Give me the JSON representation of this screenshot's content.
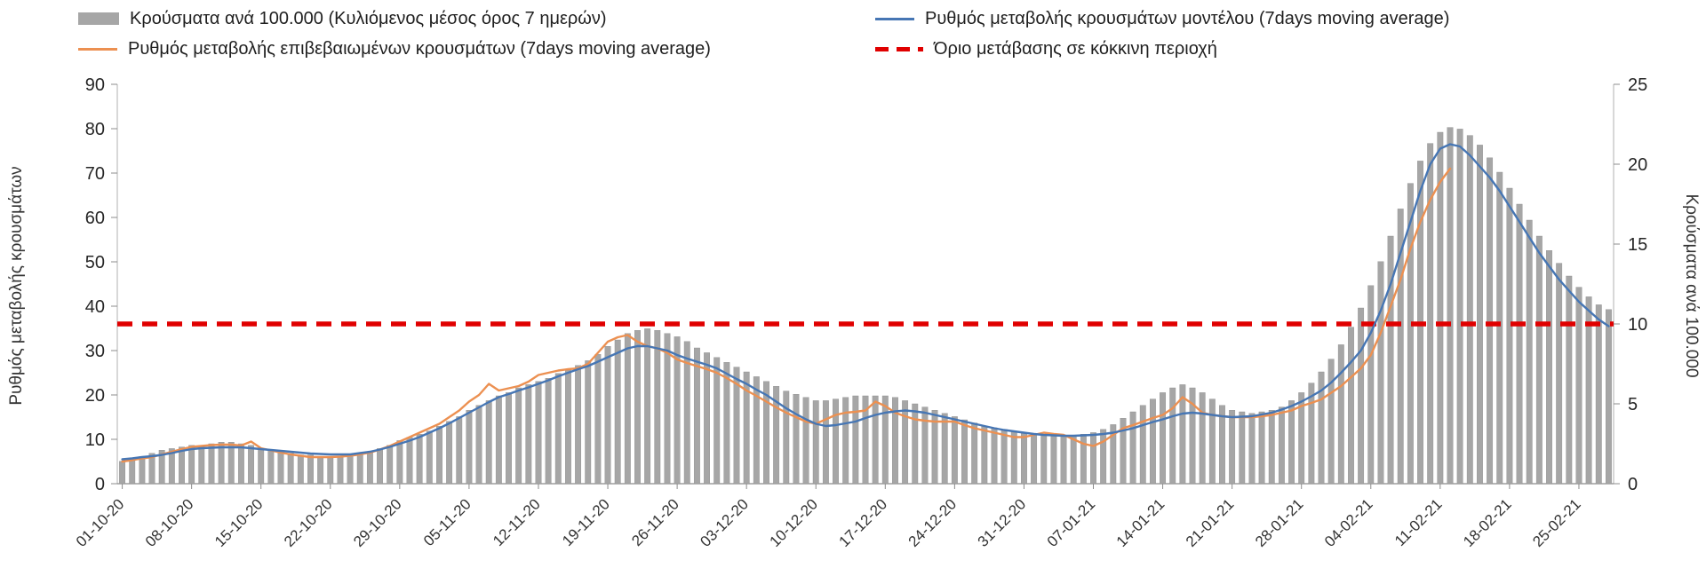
{
  "legend": {
    "items": [
      {
        "label": "Κρούσματα ανά 100.000 (Κυλιόμενος μέσος όρος 7 ημερών)",
        "type": "bar",
        "color": "#a6a6a6"
      },
      {
        "label": "Ρυθμός μεταβολής κρουσμάτων μοντέλου (7days moving average)",
        "type": "line",
        "color": "#4676b4"
      },
      {
        "label": "Ρυθμός μεταβολής επιβεβαιωμένων κρουσμάτων (7days moving average)",
        "type": "line",
        "color": "#ec9051"
      },
      {
        "label": "Όριο μετάβασης σε κόκκινη περιοχή",
        "type": "dashed",
        "color": "#e00000"
      }
    ]
  },
  "chart_data": {
    "type": "bar+line combo",
    "legend_position": "top",
    "grid": "off",
    "left_axis": {
      "label": "Ρυθμός μεταβολής κρουσμάτων",
      "min": 0,
      "max": 90,
      "step": 10
    },
    "right_axis": {
      "label": "Κρούσματα ανά 100.000",
      "min": 0,
      "max": 25,
      "step": 5
    },
    "x_tick_labels": [
      "01-10-20",
      "08-10-20",
      "15-10-20",
      "22-10-20",
      "29-10-20",
      "05-11-20",
      "12-11-20",
      "19-11-20",
      "26-11-20",
      "03-12-20",
      "10-12-20",
      "17-12-20",
      "24-12-20",
      "31-12-20",
      "07-01-21",
      "14-01-21",
      "21-01-21",
      "28-01-21",
      "04-02-21",
      "11-02-21",
      "18-02-21",
      "25-02-21"
    ],
    "x_tick_every": 7,
    "threshold": {
      "label": "Όριο μετάβασης σε κόκκινη περιοχή",
      "axis": "left",
      "value": 36,
      "color": "#e00000"
    },
    "bars": {
      "name": "Κρούσματα ανά 100.000 (Κυλιόμενος μέσος όρος 7 ημερών)",
      "axis": "right",
      "color": "#a6a6a6",
      "values": [
        1.4,
        1.5,
        1.7,
        1.9,
        2.1,
        2.2,
        2.3,
        2.4,
        2.4,
        2.5,
        2.6,
        2.6,
        2.5,
        2.4,
        2.2,
        2.1,
        2.0,
        1.9,
        1.8,
        1.8,
        1.7,
        1.7,
        1.7,
        1.8,
        1.9,
        2.0,
        2.2,
        2.4,
        2.7,
        2.9,
        3.1,
        3.3,
        3.6,
        3.9,
        4.2,
        4.6,
        4.9,
        5.2,
        5.5,
        5.7,
        6.0,
        6.2,
        6.4,
        6.6,
        6.9,
        7.1,
        7.4,
        7.7,
        8.1,
        8.6,
        9.0,
        9.4,
        9.6,
        9.7,
        9.6,
        9.4,
        9.2,
        8.9,
        8.5,
        8.2,
        7.9,
        7.6,
        7.3,
        7.0,
        6.7,
        6.4,
        6.1,
        5.8,
        5.6,
        5.4,
        5.2,
        5.2,
        5.3,
        5.4,
        5.5,
        5.5,
        5.5,
        5.5,
        5.4,
        5.2,
        5.0,
        4.8,
        4.6,
        4.4,
        4.2,
        4.0,
        3.8,
        3.6,
        3.5,
        3.4,
        3.3,
        3.2,
        3.1,
        3.0,
        3.0,
        3.0,
        3.0,
        3.1,
        3.2,
        3.4,
        3.7,
        4.1,
        4.5,
        4.9,
        5.3,
        5.7,
        6.0,
        6.2,
        6.0,
        5.7,
        5.3,
        4.9,
        4.6,
        4.5,
        4.4,
        4.5,
        4.6,
        4.8,
        5.2,
        5.7,
        6.3,
        7.0,
        7.8,
        8.7,
        9.8,
        11.0,
        12.4,
        13.9,
        15.5,
        17.2,
        18.8,
        20.2,
        21.3,
        22.0,
        22.3,
        22.2,
        21.8,
        21.2,
        20.4,
        19.5,
        18.5,
        17.5,
        16.5,
        15.5,
        14.6,
        13.8,
        13.0,
        12.3,
        11.7,
        11.2,
        10.9
      ]
    },
    "series": [
      {
        "name": "Ρυθμός μεταβολής κρουσμάτων μοντέλου (7days moving average)",
        "axis": "left",
        "color": "#4676b4",
        "values": [
          5.5,
          5.7,
          6.0,
          6.2,
          6.5,
          6.9,
          7.4,
          7.8,
          8.0,
          8.1,
          8.2,
          8.2,
          8.2,
          8.0,
          7.8,
          7.6,
          7.4,
          7.2,
          7.0,
          6.8,
          6.7,
          6.6,
          6.6,
          6.6,
          6.9,
          7.2,
          7.7,
          8.3,
          9.0,
          9.7,
          10.5,
          11.5,
          12.5,
          13.6,
          14.8,
          16.0,
          17.2,
          18.4,
          19.5,
          20.2,
          21.0,
          21.7,
          22.5,
          23.3,
          24.2,
          25.0,
          25.8,
          26.5,
          27.5,
          28.5,
          29.5,
          30.5,
          31.0,
          31.0,
          30.5,
          30.0,
          29.0,
          28.2,
          27.5,
          26.8,
          26.0,
          24.8,
          23.6,
          22.5,
          21.2,
          20.0,
          18.5,
          17.0,
          15.7,
          14.5,
          13.5,
          13.0,
          13.2,
          13.6,
          14.0,
          14.8,
          15.5,
          16.0,
          16.3,
          16.5,
          16.3,
          16.0,
          15.5,
          15.0,
          14.5,
          14.0,
          13.5,
          13.0,
          12.5,
          12.1,
          11.8,
          11.5,
          11.2,
          11.0,
          10.9,
          10.8,
          10.8,
          10.9,
          11.0,
          11.2,
          11.5,
          12.0,
          12.5,
          13.2,
          13.9,
          14.5,
          15.2,
          15.8,
          16.0,
          15.8,
          15.5,
          15.2,
          15.0,
          15.1,
          15.2,
          15.6,
          16.0,
          16.7,
          17.5,
          18.5,
          19.7,
          21.0,
          22.8,
          25.0,
          27.4,
          30.0,
          34.0,
          39.0,
          45.0,
          52.0,
          59.0,
          66.0,
          72.0,
          75.5,
          76.5,
          76.0,
          74.0,
          71.5,
          69.0,
          66.0,
          62.5,
          59.0,
          55.5,
          52.0,
          49.0,
          46.0,
          43.5,
          41.0,
          39.0,
          37.0,
          35.5
        ]
      },
      {
        "name": "Ρυθμός μεταβολής επιβεβαιωμένων κρουσμάτων (7days moving average)",
        "axis": "left",
        "color": "#ec9051",
        "values": [
          5.0,
          5.3,
          5.7,
          6.0,
          6.6,
          7.2,
          7.8,
          8.3,
          8.5,
          8.7,
          8.8,
          8.8,
          8.6,
          9.5,
          8.0,
          7.5,
          7.0,
          6.6,
          6.3,
          6.0,
          6.0,
          6.0,
          6.1,
          6.3,
          6.6,
          7.0,
          7.7,
          8.5,
          9.5,
          10.5,
          11.5,
          12.5,
          13.5,
          15.0,
          16.5,
          18.5,
          20.0,
          22.5,
          21.0,
          21.5,
          22.0,
          23.0,
          24.5,
          25.0,
          25.5,
          25.8,
          26.0,
          27.0,
          29.5,
          32.0,
          33.0,
          33.5,
          32.0,
          31.0,
          30.5,
          29.5,
          28.0,
          27.2,
          26.5,
          25.8,
          25.0,
          23.8,
          22.5,
          21.0,
          19.8,
          18.5,
          17.2,
          16.0,
          15.0,
          14.0,
          13.5,
          14.5,
          15.5,
          16.0,
          16.2,
          16.5,
          18.5,
          17.5,
          16.0,
          15.2,
          14.5,
          14.2,
          14.0,
          14.0,
          14.0,
          13.2,
          12.5,
          12.0,
          11.5,
          11.0,
          10.5,
          10.5,
          11.0,
          11.5,
          11.2,
          11.0,
          10.0,
          9.0,
          8.5,
          9.5,
          11.0,
          12.5,
          13.2,
          14.0,
          14.8,
          15.5,
          17.0,
          19.5,
          18.0,
          16.0,
          15.5,
          15.2,
          15.0,
          15.0,
          15.0,
          15.2,
          15.5,
          16.0,
          16.5,
          17.5,
          18.2,
          19.0,
          20.5,
          22.0,
          24.0,
          26.0,
          29.0,
          34.0,
          40.0,
          46.0,
          53.0,
          59.0,
          64.0,
          68.0,
          71.0
        ]
      }
    ]
  }
}
